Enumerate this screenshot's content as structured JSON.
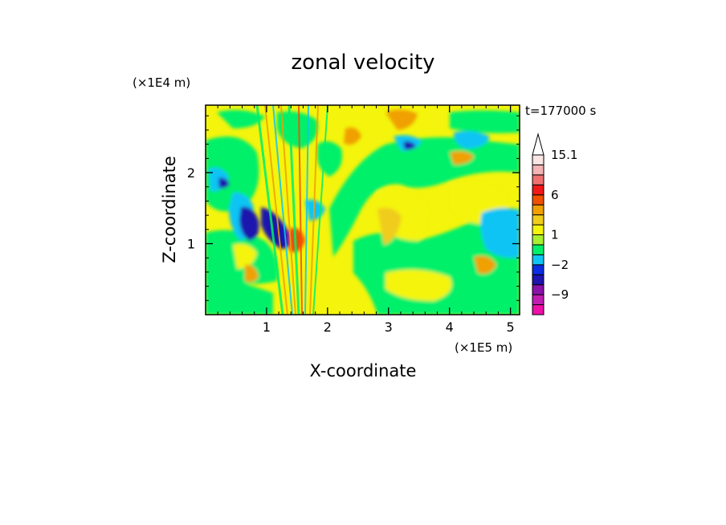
{
  "chart_data": {
    "type": "heatmap",
    "title": "zonal velocity",
    "xlabel": "X-coordinate",
    "ylabel": "Z-coordinate",
    "x_unit": "(×1E5 m)",
    "y_unit": "(×1E4 m)",
    "time_label": "t=177000 s",
    "xlim": [
      0,
      5.15
    ],
    "ylim": [
      0,
      2.95
    ],
    "x_ticks": [
      1,
      2,
      3,
      4,
      5
    ],
    "y_ticks": [
      1,
      2
    ],
    "colorbar": {
      "levels": [
        -15,
        -12,
        -9,
        -6,
        -4,
        -2,
        -1,
        0,
        1,
        2,
        3,
        4,
        6,
        8,
        10,
        12,
        15.1
      ],
      "colors": [
        "#ee10a8",
        "#c01eb0",
        "#8a12a8",
        "#1f14ae",
        "#0a2ee0",
        "#11c4f4",
        "#00f06a",
        "#a8f030",
        "#f4f40c",
        "#f0cc1c",
        "#f0a000",
        "#f05000",
        "#f01818",
        "#f07070",
        "#f4b4b4",
        "#fae4e4"
      ],
      "labels": [
        {
          "value": 15.1,
          "text": "15.1"
        },
        {
          "value": 6,
          "text": "6"
        },
        {
          "value": 1,
          "text": "1"
        },
        {
          "value": -2,
          "text": "−2"
        },
        {
          "value": -9,
          "text": "−9"
        }
      ],
      "overflow_arrow": true
    }
  }
}
